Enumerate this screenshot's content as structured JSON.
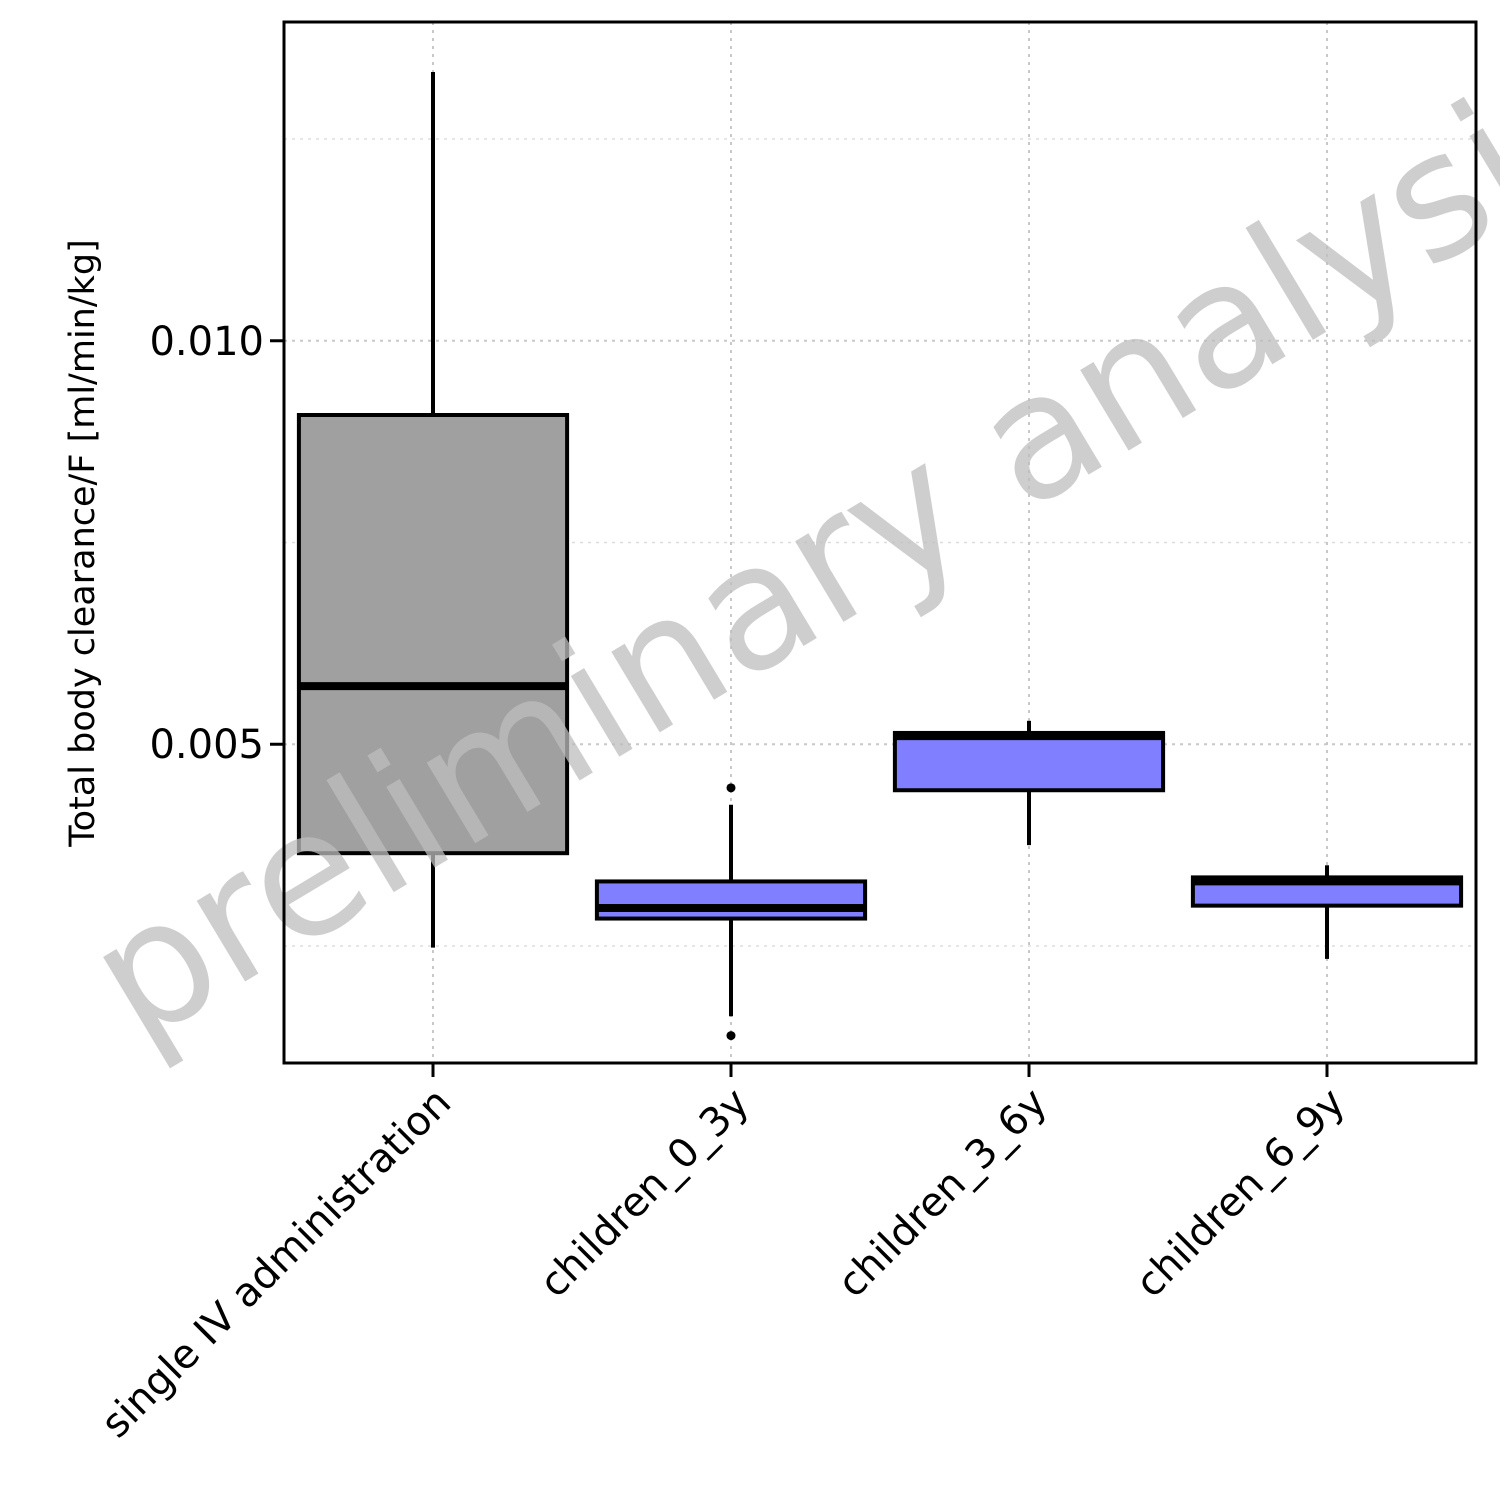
{
  "chart_data": {
    "type": "box",
    "title": "",
    "xlabel": "",
    "ylabel": "Total body clearance/F [ml/min/kg]",
    "ylim": [
      0.00105,
      0.01395
    ],
    "yticks": [
      0.005,
      0.01
    ],
    "ytick_labels": [
      "0.005",
      "0.010"
    ],
    "grid": true,
    "watermark": "preliminary analysis",
    "categories": [
      "single IV administration",
      "children_0_3y",
      "children_3_6y",
      "children_6_9y"
    ],
    "boxes": [
      {
        "category": "single IV administration",
        "whisker_low": 0.00248,
        "q1": 0.00365,
        "median": 0.00572,
        "q3": 0.00908,
        "whisker_high": 0.01333,
        "outliers": [],
        "fill": "#a0a0a0"
      },
      {
        "category": "children_0_3y",
        "whisker_low": 0.00163,
        "q1": 0.00284,
        "median": 0.00297,
        "q3": 0.0033,
        "whisker_high": 0.00425,
        "outliers": [
          0.00139,
          0.00446
        ],
        "fill": "#7f7fff"
      },
      {
        "category": "children_3_6y",
        "whisker_low": 0.00375,
        "q1": 0.00443,
        "median": 0.0051,
        "q3": 0.00514,
        "whisker_high": 0.00529,
        "outliers": [],
        "fill": "#7f7fff"
      },
      {
        "category": "children_6_9y",
        "whisker_low": 0.00234,
        "q1": 0.003,
        "median": 0.0033,
        "q3": 0.00335,
        "whisker_high": 0.0035,
        "outliers": [],
        "fill": "#7f7fff"
      }
    ]
  }
}
